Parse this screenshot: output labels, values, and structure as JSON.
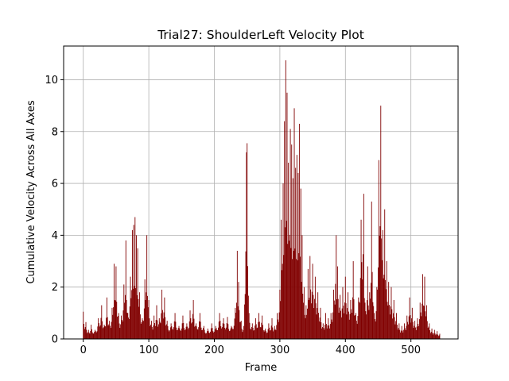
{
  "chart_data": {
    "type": "bar",
    "title": "Trial27: ShoulderLeft Velocity Plot",
    "xlabel": "Frame",
    "ylabel": "Cumulative Velocity Across All Axes",
    "xlim": [
      -30,
      572
    ],
    "ylim": [
      0,
      11.3
    ],
    "xticks": [
      0,
      100,
      200,
      300,
      400,
      500
    ],
    "yticks": [
      0,
      2,
      4,
      6,
      8,
      10
    ],
    "grid": true,
    "bar_color": "#800000",
    "x_start": 0,
    "x_end": 544,
    "peaks": [
      {
        "x": 0,
        "y": 1.05
      },
      {
        "x": 4,
        "y": 0.65
      },
      {
        "x": 8,
        "y": 0.35
      },
      {
        "x": 12,
        "y": 0.55
      },
      {
        "x": 18,
        "y": 0.35
      },
      {
        "x": 23,
        "y": 0.8
      },
      {
        "x": 28,
        "y": 1.3
      },
      {
        "x": 32,
        "y": 0.55
      },
      {
        "x": 36,
        "y": 1.6
      },
      {
        "x": 40,
        "y": 0.7
      },
      {
        "x": 44,
        "y": 1.2
      },
      {
        "x": 47,
        "y": 2.9
      },
      {
        "x": 50,
        "y": 2.8
      },
      {
        "x": 54,
        "y": 1.0
      },
      {
        "x": 58,
        "y": 0.9
      },
      {
        "x": 62,
        "y": 2.1
      },
      {
        "x": 65,
        "y": 3.8
      },
      {
        "x": 68,
        "y": 1.0
      },
      {
        "x": 72,
        "y": 2.4
      },
      {
        "x": 75,
        "y": 4.2
      },
      {
        "x": 77,
        "y": 4.4
      },
      {
        "x": 79,
        "y": 4.7
      },
      {
        "x": 81,
        "y": 4.0
      },
      {
        "x": 83,
        "y": 3.5
      },
      {
        "x": 86,
        "y": 1.8
      },
      {
        "x": 90,
        "y": 0.8
      },
      {
        "x": 94,
        "y": 2.3
      },
      {
        "x": 97,
        "y": 4.0
      },
      {
        "x": 100,
        "y": 1.5
      },
      {
        "x": 104,
        "y": 0.7
      },
      {
        "x": 108,
        "y": 0.9
      },
      {
        "x": 112,
        "y": 1.3
      },
      {
        "x": 116,
        "y": 0.8
      },
      {
        "x": 120,
        "y": 1.9
      },
      {
        "x": 124,
        "y": 1.6
      },
      {
        "x": 128,
        "y": 0.7
      },
      {
        "x": 134,
        "y": 0.6
      },
      {
        "x": 140,
        "y": 1.0
      },
      {
        "x": 146,
        "y": 0.5
      },
      {
        "x": 152,
        "y": 0.9
      },
      {
        "x": 158,
        "y": 0.6
      },
      {
        "x": 163,
        "y": 1.1
      },
      {
        "x": 168,
        "y": 1.5
      },
      {
        "x": 172,
        "y": 0.6
      },
      {
        "x": 178,
        "y": 1.0
      },
      {
        "x": 184,
        "y": 0.5
      },
      {
        "x": 190,
        "y": 0.4
      },
      {
        "x": 196,
        "y": 0.6
      },
      {
        "x": 202,
        "y": 0.5
      },
      {
        "x": 208,
        "y": 1.0
      },
      {
        "x": 214,
        "y": 0.8
      },
      {
        "x": 220,
        "y": 0.85
      },
      {
        "x": 226,
        "y": 0.5
      },
      {
        "x": 232,
        "y": 1.2
      },
      {
        "x": 235,
        "y": 3.4
      },
      {
        "x": 237,
        "y": 2.2
      },
      {
        "x": 241,
        "y": 0.7
      },
      {
        "x": 245,
        "y": 0.5
      },
      {
        "x": 249,
        "y": 7.2
      },
      {
        "x": 250,
        "y": 7.55
      },
      {
        "x": 253,
        "y": 1.0
      },
      {
        "x": 258,
        "y": 0.6
      },
      {
        "x": 263,
        "y": 0.8
      },
      {
        "x": 268,
        "y": 1.0
      },
      {
        "x": 273,
        "y": 0.9
      },
      {
        "x": 278,
        "y": 0.4
      },
      {
        "x": 283,
        "y": 0.6
      },
      {
        "x": 288,
        "y": 0.8
      },
      {
        "x": 292,
        "y": 0.5
      },
      {
        "x": 296,
        "y": 1.0
      },
      {
        "x": 300,
        "y": 1.9
      },
      {
        "x": 302,
        "y": 4.6
      },
      {
        "x": 305,
        "y": 6.0
      },
      {
        "x": 307,
        "y": 8.4
      },
      {
        "x": 309,
        "y": 10.75
      },
      {
        "x": 311,
        "y": 9.5
      },
      {
        "x": 313,
        "y": 6.8
      },
      {
        "x": 316,
        "y": 8.1
      },
      {
        "x": 318,
        "y": 7.5
      },
      {
        "x": 320,
        "y": 6.2
      },
      {
        "x": 322,
        "y": 8.9
      },
      {
        "x": 324,
        "y": 6.6
      },
      {
        "x": 326,
        "y": 7.1
      },
      {
        "x": 328,
        "y": 6.4
      },
      {
        "x": 330,
        "y": 8.3
      },
      {
        "x": 332,
        "y": 5.8
      },
      {
        "x": 334,
        "y": 4.0
      },
      {
        "x": 337,
        "y": 2.0
      },
      {
        "x": 340,
        "y": 1.3
      },
      {
        "x": 343,
        "y": 2.7
      },
      {
        "x": 346,
        "y": 3.2
      },
      {
        "x": 350,
        "y": 2.9
      },
      {
        "x": 354,
        "y": 2.4
      },
      {
        "x": 358,
        "y": 1.8
      },
      {
        "x": 362,
        "y": 1.2
      },
      {
        "x": 366,
        "y": 0.6
      },
      {
        "x": 370,
        "y": 1.0
      },
      {
        "x": 374,
        "y": 0.8
      },
      {
        "x": 378,
        "y": 1.0
      },
      {
        "x": 382,
        "y": 1.9
      },
      {
        "x": 386,
        "y": 4.0
      },
      {
        "x": 388,
        "y": 2.8
      },
      {
        "x": 392,
        "y": 1.7
      },
      {
        "x": 396,
        "y": 2.0
      },
      {
        "x": 400,
        "y": 2.4
      },
      {
        "x": 404,
        "y": 1.8
      },
      {
        "x": 408,
        "y": 1.5
      },
      {
        "x": 412,
        "y": 3.0
      },
      {
        "x": 416,
        "y": 1.0
      },
      {
        "x": 420,
        "y": 1.6
      },
      {
        "x": 424,
        "y": 4.6
      },
      {
        "x": 428,
        "y": 5.6
      },
      {
        "x": 430,
        "y": 1.4
      },
      {
        "x": 434,
        "y": 2.8
      },
      {
        "x": 437,
        "y": 1.8
      },
      {
        "x": 440,
        "y": 5.3
      },
      {
        "x": 444,
        "y": 1.0
      },
      {
        "x": 448,
        "y": 2.0
      },
      {
        "x": 451,
        "y": 6.9
      },
      {
        "x": 454,
        "y": 9.0
      },
      {
        "x": 457,
        "y": 4.2
      },
      {
        "x": 460,
        "y": 5.0
      },
      {
        "x": 463,
        "y": 3.0
      },
      {
        "x": 466,
        "y": 2.2
      },
      {
        "x": 470,
        "y": 2.0
      },
      {
        "x": 474,
        "y": 1.5
      },
      {
        "x": 478,
        "y": 1.0
      },
      {
        "x": 482,
        "y": 0.6
      },
      {
        "x": 486,
        "y": 0.5
      },
      {
        "x": 490,
        "y": 0.6
      },
      {
        "x": 494,
        "y": 0.9
      },
      {
        "x": 498,
        "y": 1.6
      },
      {
        "x": 502,
        "y": 1.2
      },
      {
        "x": 506,
        "y": 0.7
      },
      {
        "x": 510,
        "y": 0.8
      },
      {
        "x": 514,
        "y": 1.4
      },
      {
        "x": 518,
        "y": 2.5
      },
      {
        "x": 521,
        "y": 2.4
      },
      {
        "x": 524,
        "y": 1.3
      },
      {
        "x": 528,
        "y": 0.6
      },
      {
        "x": 532,
        "y": 0.4
      },
      {
        "x": 536,
        "y": 0.35
      },
      {
        "x": 540,
        "y": 0.3
      },
      {
        "x": 544,
        "y": 0.2
      }
    ]
  }
}
